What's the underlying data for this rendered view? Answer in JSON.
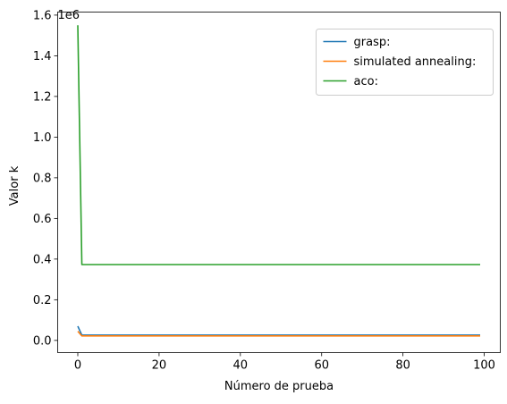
{
  "chart_data": {
    "type": "line",
    "title": "",
    "xlabel": "Número de prueba",
    "ylabel": "Valor k",
    "offset_label": "1e6",
    "xlim": [
      -4.95,
      103.95
    ],
    "ylim": [
      -0.06,
      1.615
    ],
    "xticks": [
      0,
      20,
      40,
      60,
      80,
      100
    ],
    "yticks": [
      0.0,
      0.2,
      0.4,
      0.6,
      0.8,
      1.0,
      1.2,
      1.4,
      1.6
    ],
    "ytick_labels": [
      "0.0",
      "0.2",
      "0.4",
      "0.6",
      "0.8",
      "1.0",
      "1.2",
      "1.4",
      "1.6"
    ],
    "grid": false,
    "legend_position": "top-right",
    "series": [
      {
        "name": "grasp:",
        "color": "#1f77b4",
        "x": [
          0,
          1,
          99
        ],
        "y": [
          0.07,
          0.026,
          0.026
        ]
      },
      {
        "name": "simulated annealing:",
        "color": "#ff7f0e",
        "x": [
          0,
          1,
          99
        ],
        "y": [
          0.045,
          0.022,
          0.022
        ]
      },
      {
        "name": "aco:",
        "color": "#2ca02c",
        "x": [
          0,
          1,
          99
        ],
        "y": [
          1.55,
          0.373,
          0.373
        ]
      }
    ]
  }
}
